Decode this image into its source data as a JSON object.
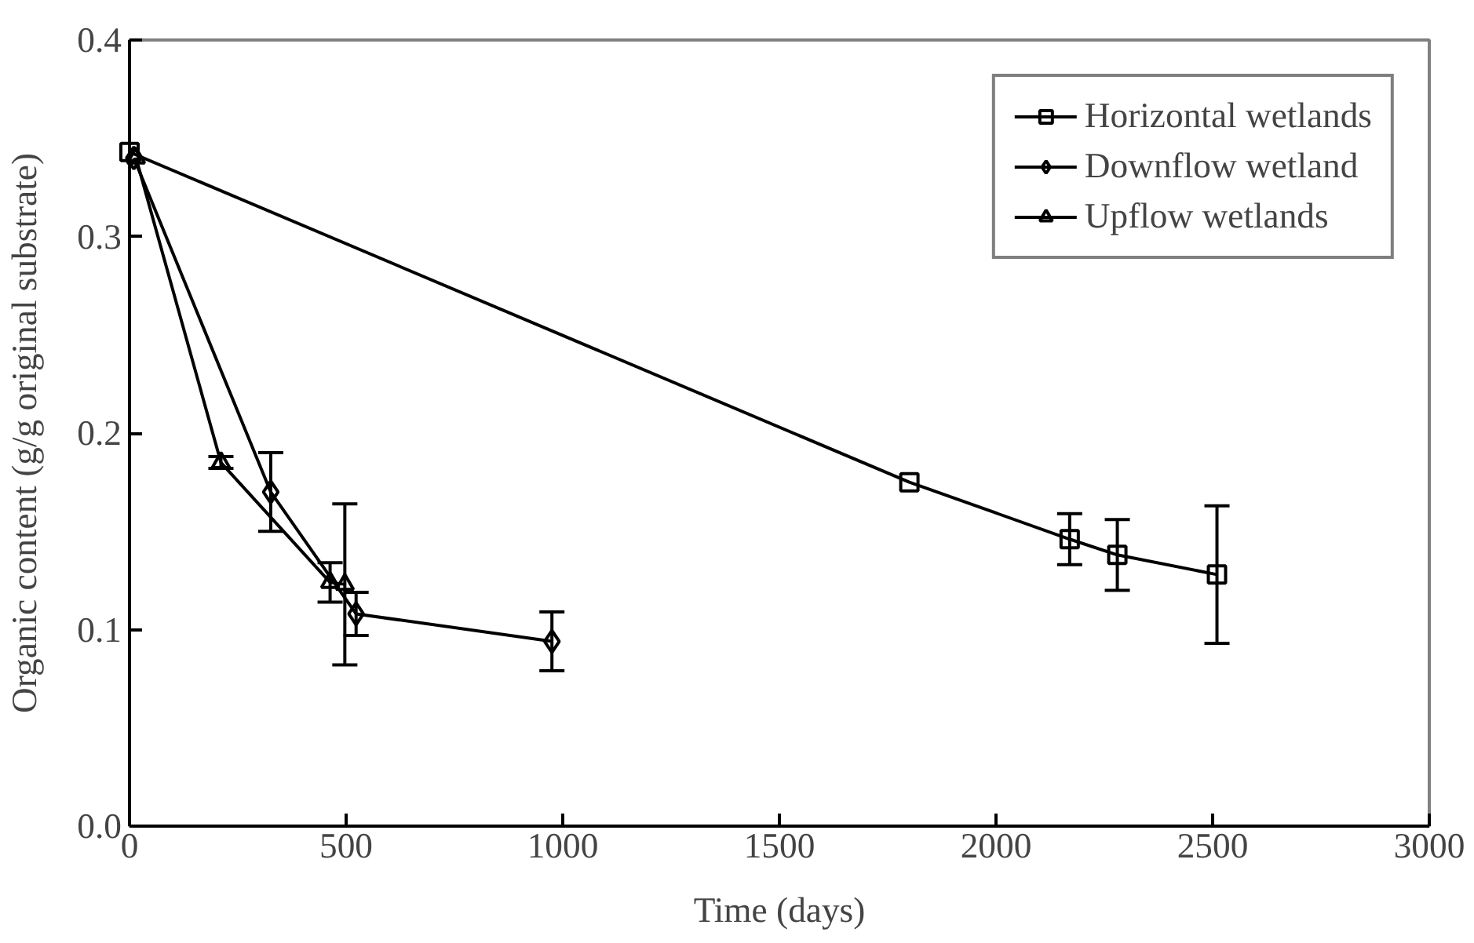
{
  "chart_data": {
    "type": "line",
    "xlabel": "Time (days)",
    "ylabel": "Organic content (g/g original substrate)",
    "xlim": [
      0,
      3000
    ],
    "xticks": [
      0,
      500,
      1000,
      1500,
      2000,
      2500,
      3000
    ],
    "ylim": [
      0,
      0.4
    ],
    "yticks": [
      {
        "value": 0,
        "label": "0.0"
      },
      0.1,
      0.2,
      0.3,
      0.4
    ],
    "grid": false,
    "legend": "top right",
    "line_style": "solid",
    "series": [
      {
        "name": "Horizontal wetlands",
        "color": "#000000",
        "marker": "square",
        "x": [
          0,
          1800,
          2170,
          2280,
          2510
        ],
        "values": [
          0.343,
          0.175,
          0.146,
          0.138,
          0.128
        ],
        "errors": [
          null,
          null,
          0.013,
          0.018,
          0.035
        ]
      },
      {
        "name": "Downflow wetland",
        "color": "#000000",
        "marker": "diamond",
        "x": [
          10,
          326,
          523,
          975
        ],
        "values": [
          0.34,
          0.17,
          0.108,
          0.094
        ],
        "errors": [
          null,
          0.02,
          0.011,
          0.015
        ]
      },
      {
        "name": "Upflow wetlands",
        "color": "#000000",
        "marker": "triangle",
        "x": [
          15,
          211,
          463,
          497
        ],
        "values": [
          0.34,
          0.185,
          0.124,
          0.123
        ],
        "errors": [
          null,
          0.003,
          0.01,
          0.041
        ]
      }
    ]
  }
}
